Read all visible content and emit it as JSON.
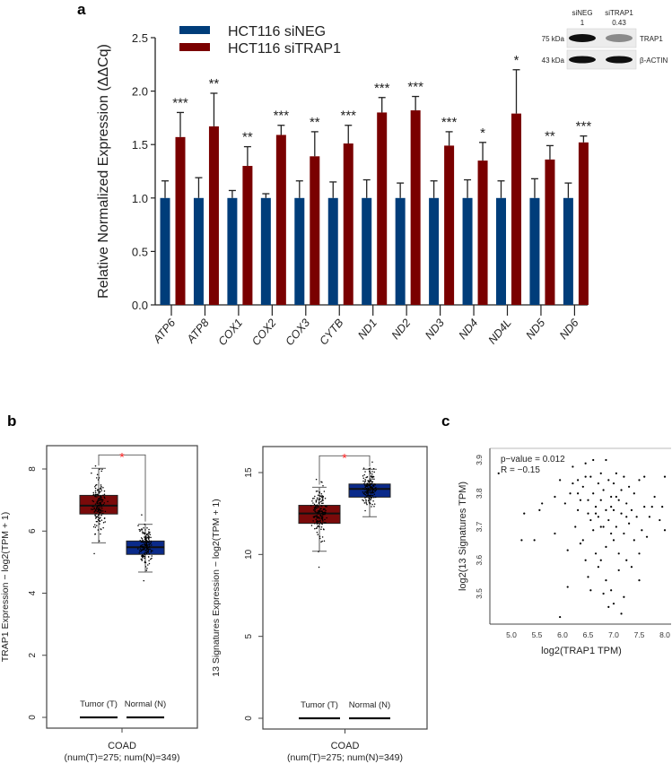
{
  "panel_labels": {
    "a": "a",
    "b": "b",
    "c": "c"
  },
  "colors": {
    "siNEG": "#003d7a",
    "siTRAP1": "#7a0000",
    "tumor": "#7a0a0a",
    "normal": "#0a2a8a",
    "sig": "#ff2020"
  },
  "western_blot": {
    "lanes": [
      "siNEG",
      "siTRAP1"
    ],
    "quant": [
      "1",
      "0.43"
    ],
    "rows": [
      {
        "kda": "75 kDa",
        "protein": "TRAP1",
        "intensity": [
          1,
          0.43
        ]
      },
      {
        "kda": "43 kDa",
        "protein": "β-ACTIN",
        "intensity": [
          1,
          1
        ]
      }
    ]
  },
  "chart_data": [
    {
      "type": "bar",
      "title": "",
      "ylabel": "Relative Normalized Expression (ΔΔCq)",
      "xlabel": "",
      "ylim": [
        0,
        2.5
      ],
      "yticks": [
        "0.0",
        "0.5",
        "1.0",
        "1.5",
        "2.0",
        "2.5"
      ],
      "legend_position": "top-left",
      "categories": [
        "ATP6",
        "ATP8",
        "COX1",
        "COX2",
        "COX3",
        "CYTB",
        "ND1",
        "ND2",
        "ND3",
        "ND4",
        "ND4L",
        "ND5",
        "ND6"
      ],
      "series": [
        {
          "name": "HCT116 siNEG",
          "values": [
            1,
            1,
            1,
            1,
            1,
            1,
            1,
            1,
            1,
            1,
            1,
            1,
            1
          ],
          "error_upper": [
            1.16,
            1.19,
            1.07,
            1.04,
            1.16,
            1.15,
            1.17,
            1.14,
            1.16,
            1.17,
            1.16,
            1.18,
            1.14
          ]
        },
        {
          "name": "HCT116 siTRAP1",
          "values": [
            1.57,
            1.67,
            1.3,
            1.59,
            1.39,
            1.51,
            1.8,
            1.82,
            1.49,
            1.35,
            1.79,
            1.36,
            1.52
          ],
          "error_upper": [
            1.8,
            1.98,
            1.48,
            1.68,
            1.62,
            1.68,
            1.94,
            1.95,
            1.62,
            1.52,
            2.2,
            1.49,
            1.58
          ]
        }
      ],
      "significance": [
        "***",
        "**",
        "**",
        "***",
        "**",
        "***",
        "***",
        "***",
        "***",
        "*",
        "*",
        "**",
        "***"
      ]
    },
    {
      "type": "boxplot",
      "ylabel": "TRAP1 Expression − log2(TPM + 1)",
      "ylim": [
        0,
        8.8
      ],
      "yticks": [
        "0",
        "2",
        "4",
        "6",
        "8"
      ],
      "groups": [
        {
          "name": "Tumor (T)",
          "whisker_low": 5.62,
          "q1": 6.55,
          "median": 6.82,
          "q3": 7.15,
          "whisker_high": 8.02
        },
        {
          "name": "Normal (N)",
          "whisker_low": 4.68,
          "q1": 5.25,
          "median": 5.48,
          "q3": 5.68,
          "whisker_high": 6.22
        }
      ],
      "significance": "*",
      "xlabel": "COAD",
      "xsublabel": "(num(T)=275; num(N)=349)"
    },
    {
      "type": "boxplot",
      "ylabel": "13 Signatures  Expression − log2(TPM + 1)",
      "ylim": [
        0,
        16.5
      ],
      "yticks": [
        "0",
        "5",
        "10",
        "15"
      ],
      "groups": [
        {
          "name": "Tumor (T)",
          "whisker_low": 10.2,
          "q1": 11.9,
          "median": 12.5,
          "q3": 13.0,
          "whisker_high": 14.1
        },
        {
          "name": "Normal (N)",
          "whisker_low": 12.3,
          "q1": 13.5,
          "median": 14.0,
          "q3": 14.3,
          "whisker_high": 15.2
        }
      ],
      "significance": "*",
      "xlabel": "COAD",
      "xsublabel": "(num(T)=275; num(N)=349)"
    },
    {
      "type": "scatter",
      "xlabel": "log2(TRAP1 TPM)",
      "ylabel": "log2(13 Signatures TPM)",
      "xlim": [
        4.65,
        8.05
      ],
      "ylim": [
        3.42,
        3.935
      ],
      "xticks": [
        "5.0",
        "5.5",
        "6.0",
        "6.5",
        "7.0",
        "7.5",
        "8.0"
      ],
      "yticks": [
        "3.5",
        "3.6",
        "3.7",
        "3.8",
        "3.9"
      ],
      "annotations": [
        "p−value = 0.012",
        "R = −0.15"
      ],
      "points": [
        [
          4.75,
          3.86
        ],
        [
          5.25,
          3.74
        ],
        [
          5.2,
          3.66
        ],
        [
          5.45,
          3.66
        ],
        [
          5.55,
          3.75
        ],
        [
          5.6,
          3.77
        ],
        [
          5.85,
          3.68
        ],
        [
          5.85,
          3.79
        ],
        [
          5.95,
          3.84
        ],
        [
          5.95,
          3.43
        ],
        [
          6.05,
          3.77
        ],
        [
          6.1,
          3.63
        ],
        [
          6.1,
          3.52
        ],
        [
          6.15,
          3.8
        ],
        [
          6.2,
          3.88
        ],
        [
          6.2,
          3.83
        ],
        [
          6.25,
          3.7
        ],
        [
          6.3,
          3.84
        ],
        [
          6.3,
          3.75
        ],
        [
          6.35,
          3.78
        ],
        [
          6.35,
          3.65
        ],
        [
          6.4,
          3.82
        ],
        [
          6.4,
          3.66
        ],
        [
          6.45,
          3.89
        ],
        [
          6.45,
          3.6
        ],
        [
          6.5,
          3.78
        ],
        [
          6.5,
          3.74
        ],
        [
          6.5,
          3.55
        ],
        [
          6.55,
          3.85
        ],
        [
          6.55,
          3.72
        ],
        [
          6.55,
          3.51
        ],
        [
          6.6,
          3.8
        ],
        [
          6.6,
          3.69
        ],
        [
          6.65,
          3.76
        ],
        [
          6.65,
          3.62
        ],
        [
          6.7,
          3.83
        ],
        [
          6.7,
          3.73
        ],
        [
          6.7,
          3.58
        ],
        [
          6.75,
          3.86
        ],
        [
          6.75,
          3.78
        ],
        [
          6.75,
          3.6
        ],
        [
          6.8,
          3.81
        ],
        [
          6.8,
          3.7
        ],
        [
          6.8,
          3.5
        ],
        [
          6.85,
          3.75
        ],
        [
          6.85,
          3.64
        ],
        [
          6.85,
          3.54
        ],
        [
          6.9,
          3.84
        ],
        [
          6.9,
          3.72
        ],
        [
          6.9,
          3.46
        ],
        [
          6.95,
          3.79
        ],
        [
          6.95,
          3.68
        ],
        [
          6.95,
          3.51
        ],
        [
          7.0,
          3.83
        ],
        [
          7.0,
          3.75
        ],
        [
          7.0,
          3.66
        ],
        [
          7.0,
          3.47
        ],
        [
          7.05,
          3.86
        ],
        [
          7.05,
          3.7
        ],
        [
          7.1,
          3.78
        ],
        [
          7.1,
          3.62
        ],
        [
          7.1,
          3.57
        ],
        [
          7.15,
          3.81
        ],
        [
          7.15,
          3.74
        ],
        [
          7.15,
          3.44
        ],
        [
          7.2,
          3.85
        ],
        [
          7.2,
          3.68
        ],
        [
          7.2,
          3.49
        ],
        [
          7.25,
          3.77
        ],
        [
          7.25,
          3.6
        ],
        [
          7.3,
          3.82
        ],
        [
          7.3,
          3.71
        ],
        [
          7.35,
          3.75
        ],
        [
          7.35,
          3.58
        ],
        [
          7.4,
          3.8
        ],
        [
          7.4,
          3.66
        ],
        [
          7.45,
          3.73
        ],
        [
          7.5,
          3.84
        ],
        [
          7.5,
          3.62
        ],
        [
          7.5,
          3.54
        ],
        [
          7.55,
          3.69
        ],
        [
          7.6,
          3.85
        ],
        [
          7.6,
          3.76
        ],
        [
          7.65,
          3.67
        ],
        [
          7.7,
          3.73
        ],
        [
          7.75,
          3.76
        ],
        [
          7.8,
          3.79
        ],
        [
          7.9,
          3.72
        ],
        [
          7.95,
          3.76
        ],
        [
          8.0,
          3.85
        ],
        [
          8.0,
          3.69
        ],
        [
          6.3,
          3.8
        ],
        [
          6.6,
          3.9
        ],
        [
          6.85,
          3.9
        ],
        [
          6.45,
          3.85
        ],
        [
          7.05,
          3.79
        ],
        [
          6.75,
          3.7
        ],
        [
          6.65,
          3.74
        ],
        [
          6.95,
          3.76
        ],
        [
          7.25,
          3.73
        ]
      ]
    }
  ]
}
